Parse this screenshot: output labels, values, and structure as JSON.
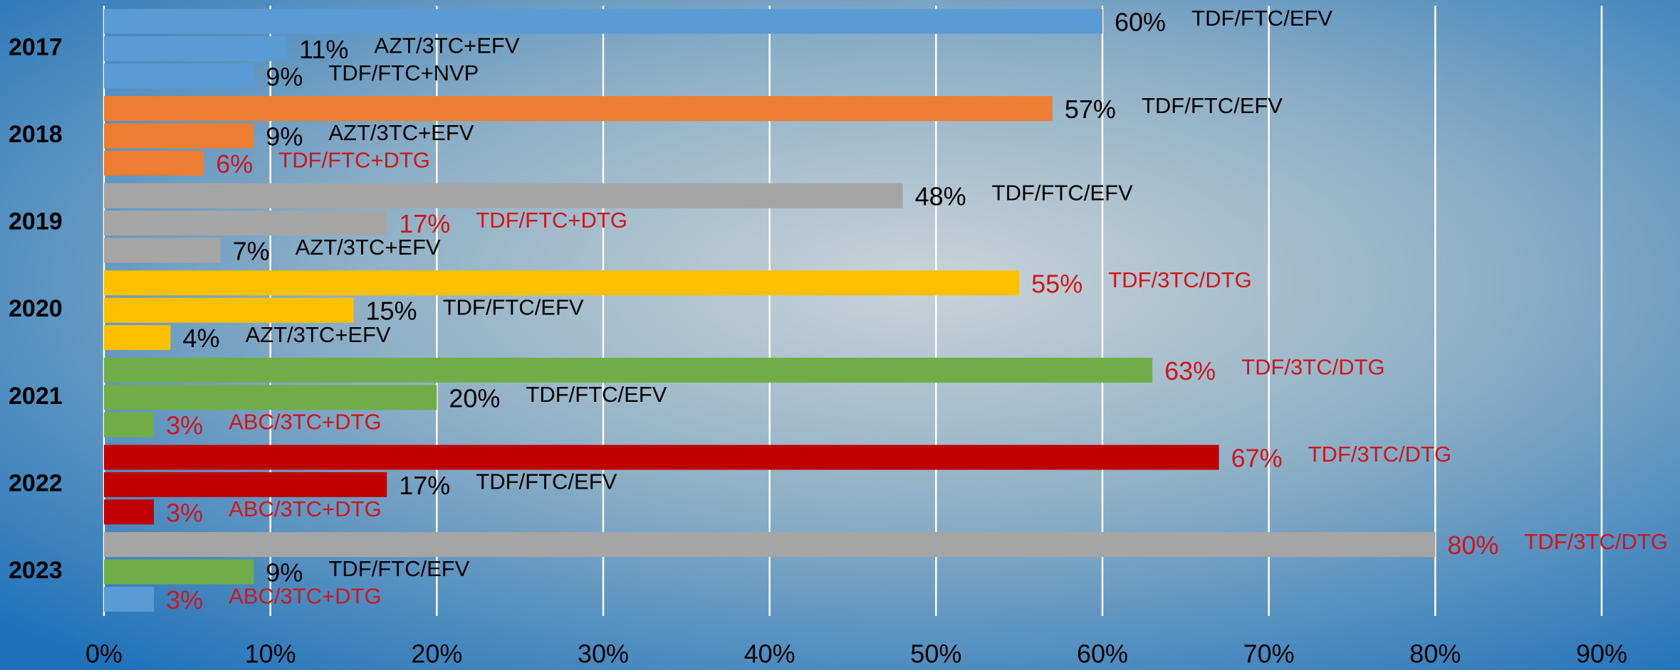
{
  "chart_data": {
    "type": "bar",
    "orientation": "horizontal",
    "categories": [
      "2017",
      "2018",
      "2019",
      "2020",
      "2021",
      "2022",
      "2023"
    ],
    "bars": [
      [
        {
          "value": 60,
          "value_label": "60%",
          "label": "TDF/FTC/EFV",
          "color": "#5b9bd5",
          "text_color": "#000000"
        },
        {
          "value": 11,
          "value_label": "11%",
          "label": "AZT/3TC+EFV",
          "color": "#5b9bd5",
          "text_color": "#000000"
        },
        {
          "value": 9,
          "value_label": "9%",
          "label": "TDF/FTC+NVP",
          "color": "#5b9bd5",
          "text_color": "#000000"
        }
      ],
      [
        {
          "value": 57,
          "value_label": "57%",
          "label": "TDF/FTC/EFV",
          "color": "#ed7d31",
          "text_color": "#000000"
        },
        {
          "value": 9,
          "value_label": "9%",
          "label": "AZT/3TC+EFV",
          "color": "#ed7d31",
          "text_color": "#000000"
        },
        {
          "value": 6,
          "value_label": "6%",
          "label": "TDF/FTC+DTG",
          "color": "#ed7d31",
          "text_color": "#d0161b"
        }
      ],
      [
        {
          "value": 48,
          "value_label": "48%",
          "label": "TDF/FTC/EFV",
          "color": "#a5a5a5",
          "text_color": "#000000"
        },
        {
          "value": 17,
          "value_label": "17%",
          "label": "TDF/FTC+DTG",
          "color": "#a5a5a5",
          "text_color": "#d0161b"
        },
        {
          "value": 7,
          "value_label": "7%",
          "label": "AZT/3TC+EFV",
          "color": "#a5a5a5",
          "text_color": "#000000"
        }
      ],
      [
        {
          "value": 55,
          "value_label": "55%",
          "label": "TDF/3TC/DTG",
          "color": "#ffc000",
          "text_color": "#d0161b"
        },
        {
          "value": 15,
          "value_label": "15%",
          "label": "TDF/FTC/EFV",
          "color": "#ffc000",
          "text_color": "#000000"
        },
        {
          "value": 4,
          "value_label": "4%",
          "label": "AZT/3TC+EFV",
          "color": "#ffc000",
          "text_color": "#000000"
        }
      ],
      [
        {
          "value": 63,
          "value_label": "63%",
          "label": "TDF/3TC/DTG",
          "color": "#70ad47",
          "text_color": "#d0161b"
        },
        {
          "value": 20,
          "value_label": "20%",
          "label": "TDF/FTC/EFV",
          "color": "#70ad47",
          "text_color": "#000000"
        },
        {
          "value": 3,
          "value_label": "3%",
          "label": "ABC/3TC+DTG",
          "color": "#70ad47",
          "text_color": "#d0161b"
        }
      ],
      [
        {
          "value": 67,
          "value_label": "67%",
          "label": "TDF/3TC/DTG",
          "color": "#c00000",
          "text_color": "#d0161b"
        },
        {
          "value": 17,
          "value_label": "17%",
          "label": "TDF/FTC/EFV",
          "color": "#c00000",
          "text_color": "#000000"
        },
        {
          "value": 3,
          "value_label": "3%",
          "label": "ABC/3TC+DTG",
          "color": "#c00000",
          "text_color": "#d0161b"
        }
      ],
      [
        {
          "value": 80,
          "value_label": "80%",
          "label": "TDF/3TC/DTG",
          "color": "#a5a5a5",
          "text_color": "#d0161b"
        },
        {
          "value": 9,
          "value_label": "9%",
          "label": "TDF/FTC/EFV",
          "color": "#70ad47",
          "text_color": "#000000"
        },
        {
          "value": 3,
          "value_label": "3%",
          "label": "ABC/3TC+DTG",
          "color": "#5b9bd5",
          "text_color": "#d0161b"
        }
      ]
    ],
    "xlim": [
      0,
      90
    ],
    "xticks": [
      {
        "value": 0,
        "label": "0%"
      },
      {
        "value": 10,
        "label": "10%"
      },
      {
        "value": 20,
        "label": "20%"
      },
      {
        "value": 30,
        "label": "30%"
      },
      {
        "value": 40,
        "label": "40%"
      },
      {
        "value": 50,
        "label": "50%"
      },
      {
        "value": 60,
        "label": "60%"
      },
      {
        "value": 70,
        "label": "70%"
      },
      {
        "value": 80,
        "label": "80%"
      },
      {
        "value": 90,
        "label": "90%"
      }
    ],
    "grid": true
  }
}
